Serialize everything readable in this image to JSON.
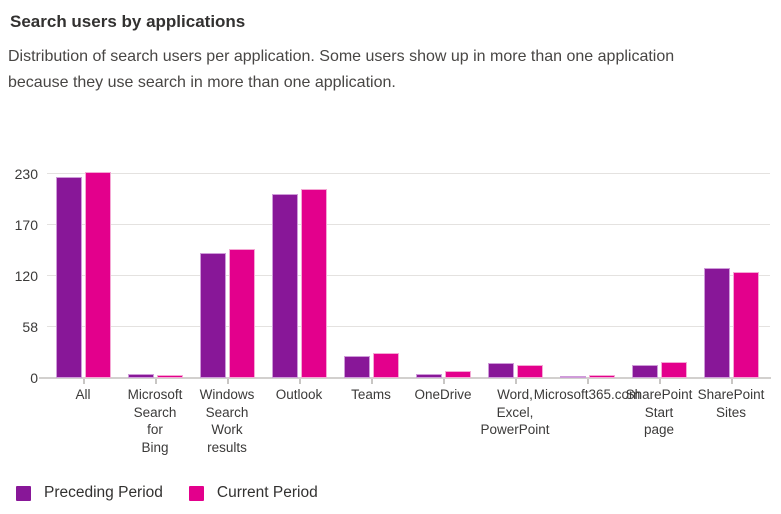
{
  "header": {
    "title": "Search users by applications",
    "description": "Distribution of search users per application. Some users show up in more than one application because they use search in more than one application."
  },
  "colors": {
    "preceding_period": "#881798",
    "preceding_period_border": "#cf9bd9",
    "current_period": "#e3008c",
    "current_period_border": "#f4a8d4",
    "gridline": "#e4e2e0",
    "axis_line": "#d2d0ce",
    "title_text": "#323130",
    "body_text": "#484644",
    "axis_text": "#3b3a39"
  },
  "chart_data": {
    "type": "bar",
    "title": "Search users by applications",
    "xlabel": "",
    "ylabel": "",
    "grid": true,
    "legend_position": "bottom-left",
    "ylim": [
      0,
      232
    ],
    "yticks": [
      0,
      58,
      120,
      170,
      230
    ],
    "ytick_labels": [
      "0",
      "58",
      "120",
      "170",
      "230"
    ],
    "categories": [
      "All",
      "Microsoft Search for Bing",
      "Windows Search Work results",
      "Outlook",
      "Teams",
      "OneDrive",
      "Word, Excel, PowerPoint",
      "Microsoft365.com",
      "SharePoint Start page",
      "SharePoint Sites"
    ],
    "category_label_lines": [
      [
        "All"
      ],
      [
        "Microsoft",
        "Search",
        "for",
        "Bing"
      ],
      [
        "Windows",
        "Search",
        "Work",
        "results"
      ],
      [
        "Outlook"
      ],
      [
        "Teams"
      ],
      [
        "OneDrive"
      ],
      [
        "Word,",
        "Excel,",
        "PowerPoint"
      ],
      [
        "Microsoft365.com"
      ],
      [
        "SharePoint",
        "Start",
        "page"
      ],
      [
        "SharePoint",
        "Sites"
      ]
    ],
    "series": [
      {
        "name": "Preceding Period",
        "color_key": "preceding_period",
        "values": [
          227,
          4,
          143,
          206,
          25,
          5,
          17,
          2,
          15,
          128
        ]
      },
      {
        "name": "Current Period",
        "color_key": "current_period",
        "values": [
          232,
          3,
          146,
          212,
          28,
          8,
          15,
          3,
          18,
          124
        ]
      }
    ]
  }
}
